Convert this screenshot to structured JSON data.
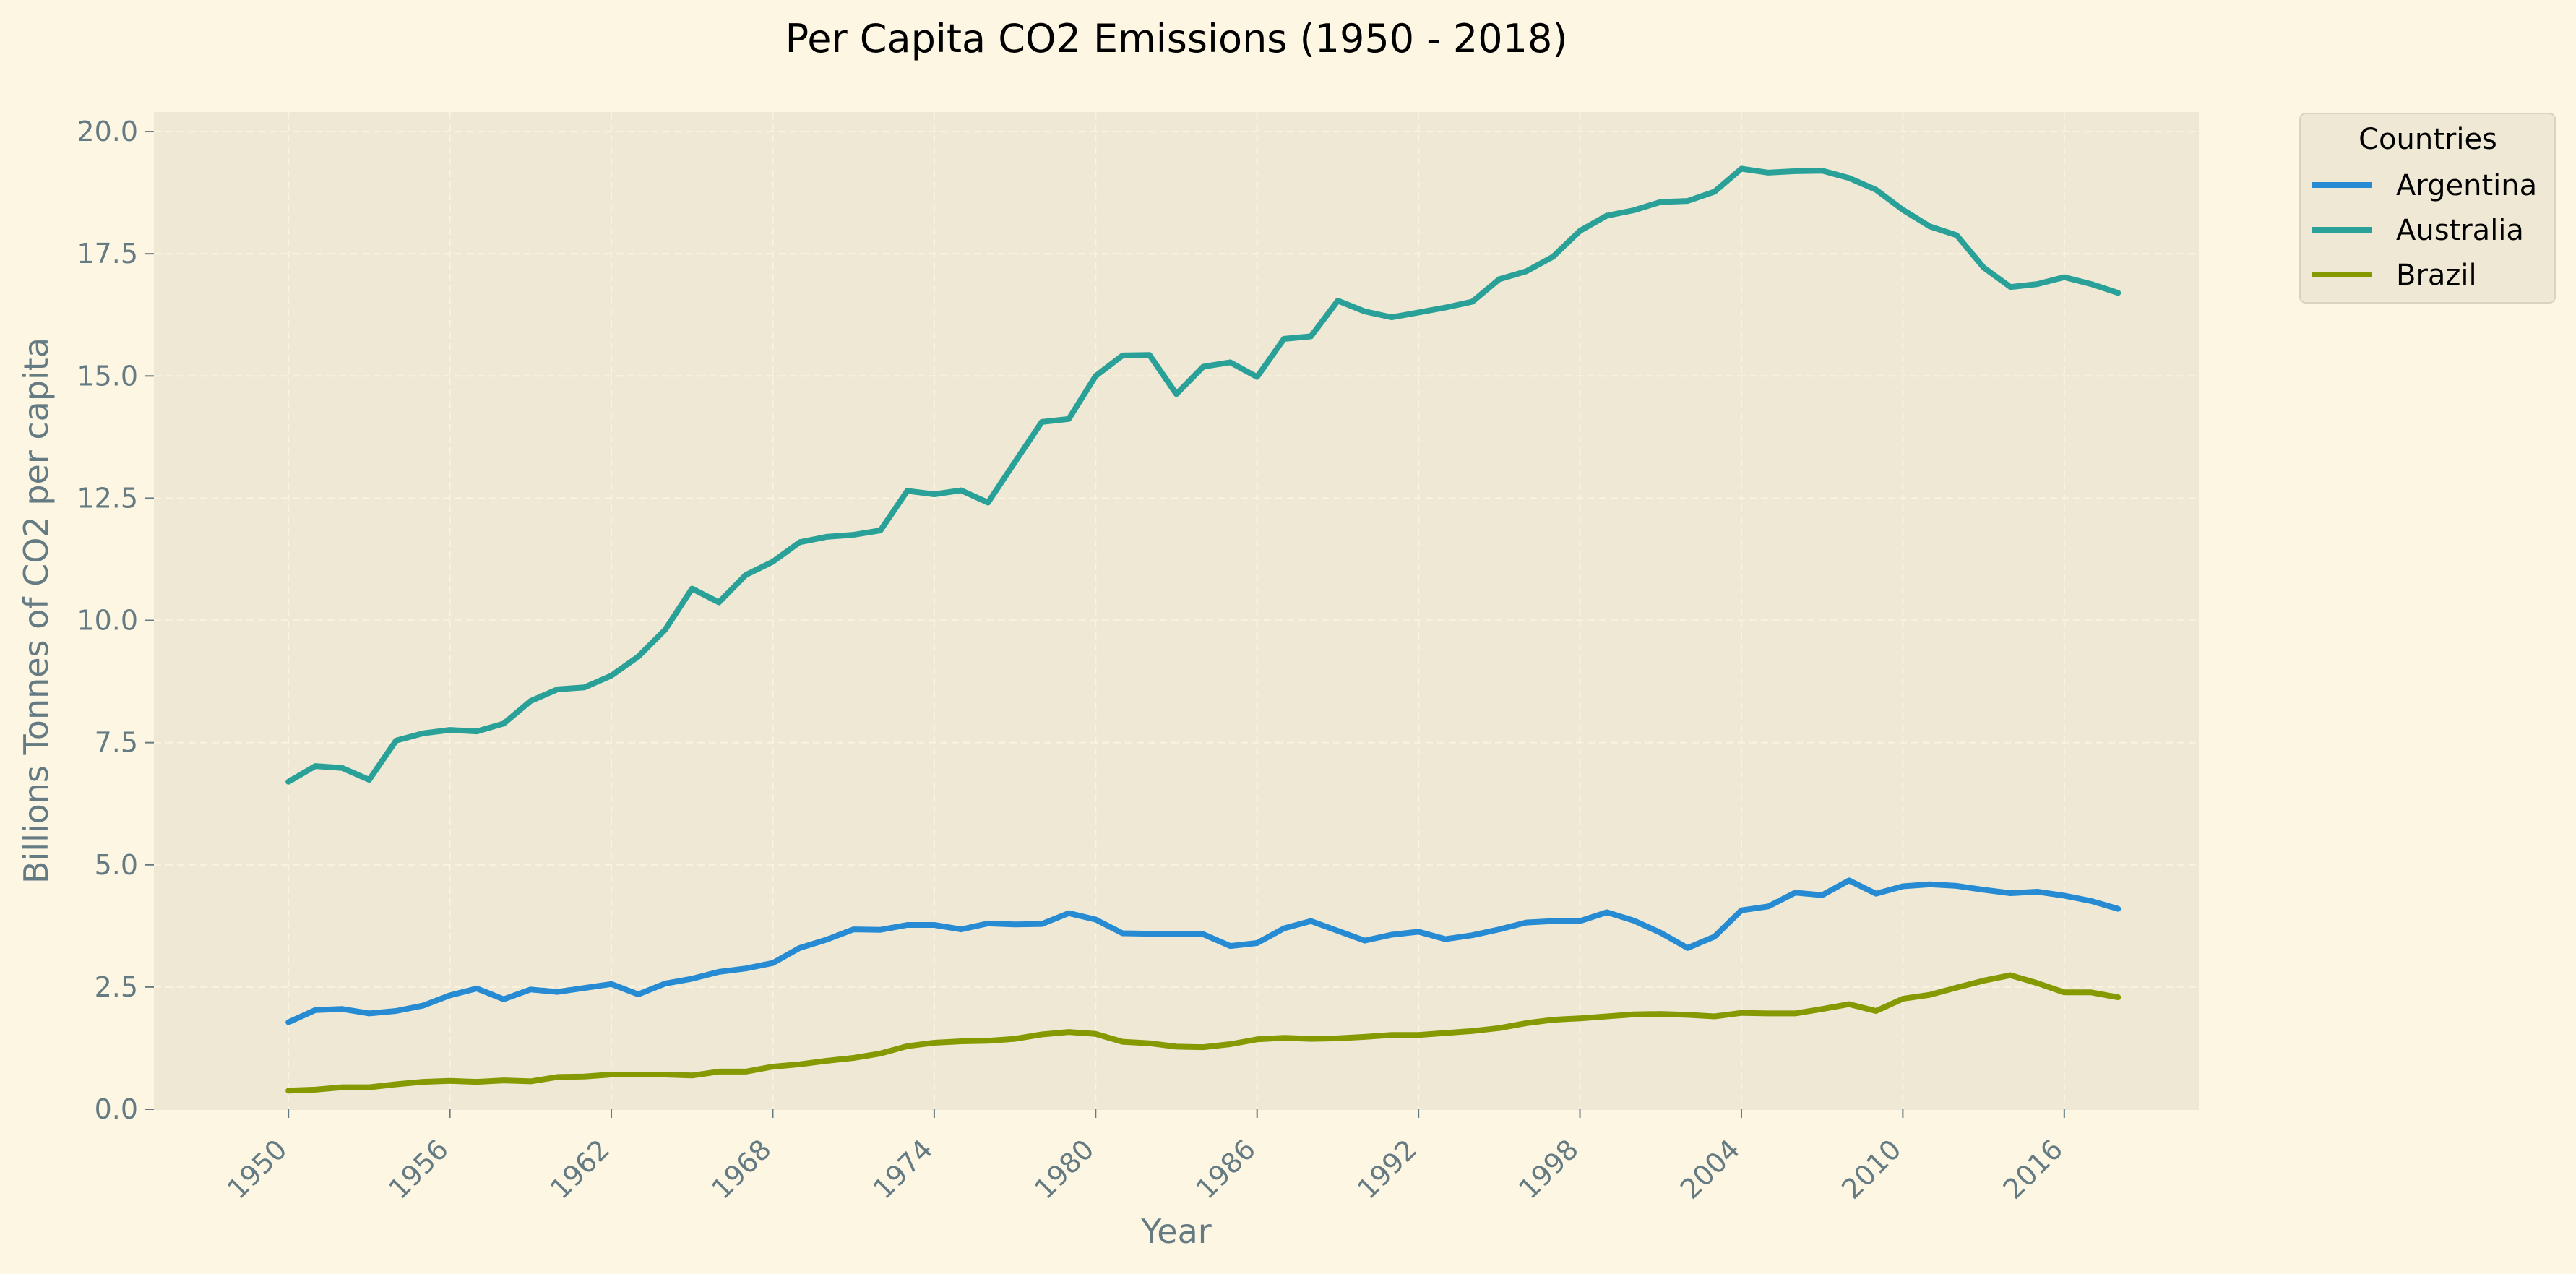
{
  "chart_data": {
    "type": "line",
    "title": "Per Capita CO2 Emissions (1950 - 2018)",
    "xlabel": "Year",
    "ylabel": "Billions Tonnes of CO2 per capita",
    "xlim": [
      1945,
      2021
    ],
    "ylim": [
      0,
      20.4
    ],
    "xticks": [
      1950,
      1956,
      1962,
      1968,
      1974,
      1980,
      1986,
      1992,
      1998,
      2004,
      2010,
      2016
    ],
    "yticks": [
      "0.0",
      "2.5",
      "5.0",
      "7.5",
      "10.0",
      "12.5",
      "15.0",
      "17.5",
      "20.0"
    ],
    "grid": true,
    "legend": {
      "title": "Countries",
      "placement": "outside-right-top"
    },
    "x": [
      1950,
      1951,
      1952,
      1953,
      1954,
      1955,
      1956,
      1957,
      1958,
      1959,
      1960,
      1961,
      1962,
      1963,
      1964,
      1965,
      1966,
      1967,
      1968,
      1969,
      1970,
      1971,
      1972,
      1973,
      1974,
      1975,
      1976,
      1977,
      1978,
      1979,
      1980,
      1981,
      1982,
      1983,
      1984,
      1985,
      1986,
      1987,
      1988,
      1989,
      1990,
      1991,
      1992,
      1993,
      1994,
      1995,
      1996,
      1997,
      1998,
      1999,
      2000,
      2001,
      2002,
      2003,
      2004,
      2005,
      2006,
      2007,
      2008,
      2009,
      2010,
      2011,
      2012,
      2013,
      2014,
      2015,
      2016,
      2017,
      2018
    ],
    "series": [
      {
        "name": "Argentina",
        "color": "#268bd2",
        "values": [
          1.78,
          2.03,
          2.05,
          1.96,
          2.01,
          2.12,
          2.33,
          2.47,
          2.25,
          2.45,
          2.4,
          2.48,
          2.56,
          2.35,
          2.57,
          2.67,
          2.81,
          2.88,
          2.99,
          3.3,
          3.47,
          3.68,
          3.67,
          3.77,
          3.77,
          3.68,
          3.8,
          3.78,
          3.79,
          4.01,
          3.88,
          3.6,
          3.59,
          3.59,
          3.58,
          3.34,
          3.4,
          3.7,
          3.85,
          3.65,
          3.45,
          3.57,
          3.63,
          3.48,
          3.56,
          3.68,
          3.82,
          3.85,
          3.85,
          4.03,
          3.86,
          3.61,
          3.3,
          3.53,
          4.07,
          4.15,
          4.43,
          4.38,
          4.68,
          4.41,
          4.56,
          4.6,
          4.57,
          4.49,
          4.42,
          4.45,
          4.37,
          4.26,
          4.1
        ]
      },
      {
        "name": "Australia",
        "color": "#2aa198",
        "values": [
          6.7,
          7.02,
          6.98,
          6.74,
          7.54,
          7.69,
          7.76,
          7.73,
          7.89,
          8.35,
          8.59,
          8.63,
          8.87,
          9.26,
          9.81,
          10.65,
          10.37,
          10.93,
          11.2,
          11.6,
          11.71,
          11.75,
          11.84,
          12.65,
          12.58,
          12.66,
          12.41,
          13.24,
          14.06,
          14.12,
          15.0,
          15.42,
          15.43,
          14.63,
          15.19,
          15.28,
          14.98,
          15.76,
          15.81,
          16.54,
          16.32,
          16.2,
          16.3,
          16.4,
          16.52,
          16.98,
          17.14,
          17.44,
          17.97,
          18.28,
          18.39,
          18.56,
          18.58,
          18.77,
          19.24,
          19.16,
          19.19,
          19.2,
          19.05,
          18.81,
          18.4,
          18.06,
          17.88,
          17.22,
          16.82,
          16.88,
          17.02,
          16.88,
          16.7
        ]
      },
      {
        "name": "Brazil",
        "color": "#859900",
        "values": [
          0.38,
          0.4,
          0.45,
          0.45,
          0.51,
          0.56,
          0.58,
          0.56,
          0.59,
          0.57,
          0.66,
          0.67,
          0.71,
          0.71,
          0.71,
          0.69,
          0.77,
          0.77,
          0.87,
          0.92,
          0.99,
          1.05,
          1.14,
          1.29,
          1.36,
          1.39,
          1.4,
          1.44,
          1.53,
          1.58,
          1.54,
          1.38,
          1.35,
          1.28,
          1.27,
          1.33,
          1.43,
          1.46,
          1.44,
          1.45,
          1.48,
          1.52,
          1.52,
          1.56,
          1.6,
          1.66,
          1.76,
          1.83,
          1.86,
          1.9,
          1.94,
          1.95,
          1.93,
          1.9,
          1.97,
          1.96,
          1.96,
          2.05,
          2.15,
          2.01,
          2.26,
          2.34,
          2.49,
          2.63,
          2.74,
          2.58,
          2.39,
          2.39,
          2.29
        ]
      }
    ]
  }
}
